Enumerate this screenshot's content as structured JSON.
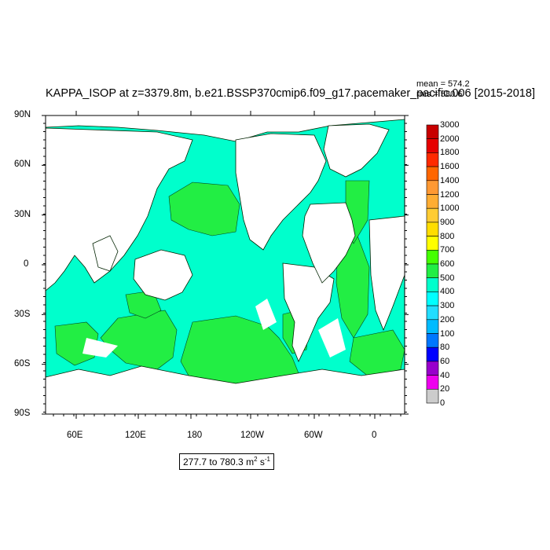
{
  "title": "KAPPA_ISOP at z=3379.8m, b.e21.BSSP370cmip6.f09_g17.pacemaker_pacific.006 [2015-2018]",
  "stats": {
    "mean": "mean = 574.2",
    "rms": "rms = 580.6"
  },
  "range": {
    "text": "277.7 to 780.3 m",
    "exp1": "2",
    "mid": " s",
    "exp2": "-1"
  },
  "map": {
    "lat_labels": [
      "90N",
      "60N",
      "30N",
      "0",
      "30S",
      "60S",
      "90S"
    ],
    "lon_labels": [
      "60E",
      "120E",
      "180",
      "120W",
      "60W",
      "0"
    ],
    "ocean_color": "#00ffcc",
    "land_color": "#ffffff"
  },
  "chart_data": {
    "type": "heatmap",
    "title": "KAPPA_ISOP at z=3379.8m, b.e21.BSSP370cmip6.f09_g17.pacemaker_pacific.006 [2015-2018]",
    "xlabel": "",
    "ylabel": "",
    "range_label": "277.7 to 780.3 m2 s-1",
    "mean": 574.2,
    "rms": 580.6,
    "legend_levels": [
      "3000",
      "2000",
      "1800",
      "1600",
      "1400",
      "1200",
      "1000",
      "900",
      "800",
      "700",
      "600",
      "500",
      "400",
      "300",
      "200",
      "100",
      "80",
      "60",
      "40",
      "20",
      "0"
    ],
    "legend_colors": [
      "#c80000",
      "#e60000",
      "#ff2a00",
      "#ff6600",
      "#ff9933",
      "#ffad33",
      "#ffcc33",
      "#ffdd00",
      "#ffff00",
      "#44ff00",
      "#22ee44",
      "#00ffcc",
      "#00ffff",
      "#22ddff",
      "#00bbff",
      "#0077ff",
      "#0000ff",
      "#9900cc",
      "#ee00ee",
      "#cccccc",
      "#777777"
    ]
  }
}
